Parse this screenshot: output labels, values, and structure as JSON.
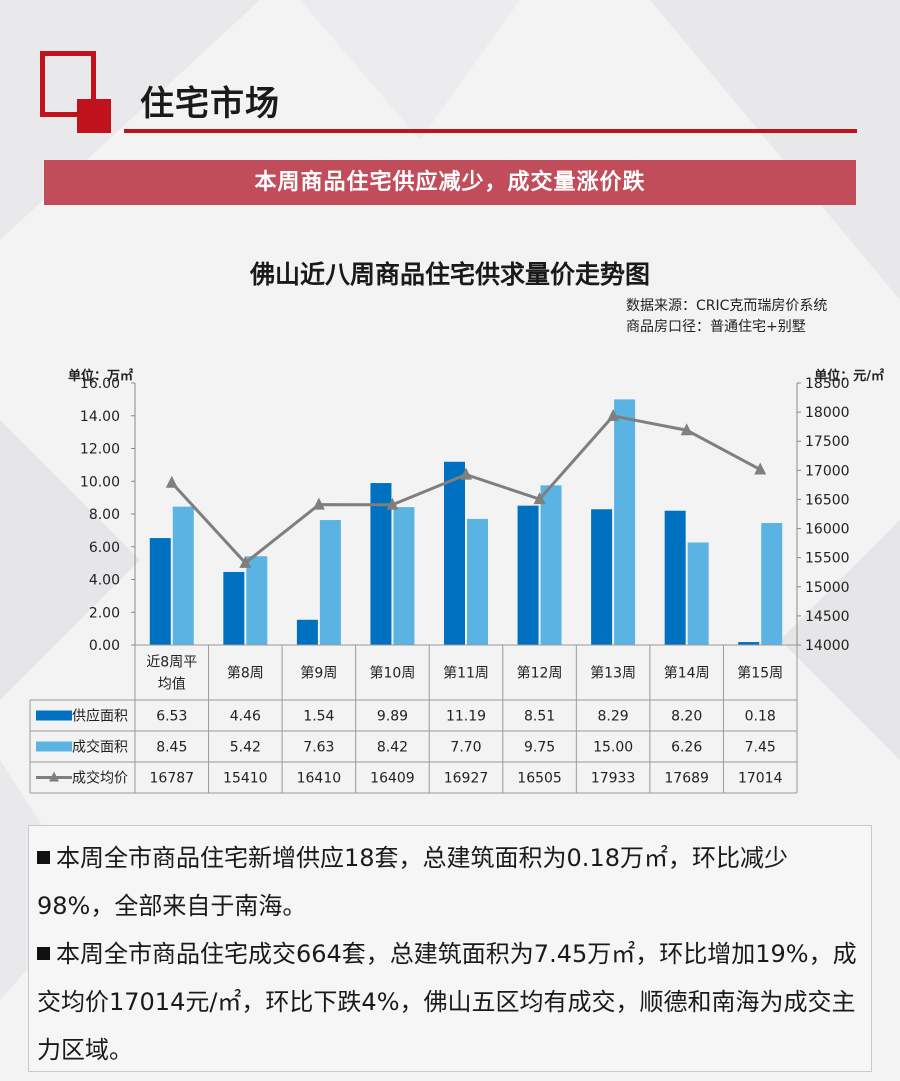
{
  "header": {
    "section_title": "住宅市场",
    "banner_text": "本周商品住宅供应减少，成交量涨价跌"
  },
  "chart_meta": {
    "source_line": "数据来源：CRIC克而瑞房价系统",
    "scope_line": "商品房口径：普通住宅+别墅"
  },
  "colors": {
    "accent_red": "#c0121c",
    "banner": "#c14d5b",
    "supply_bar": "#0070c0",
    "deal_bar": "#5bb3e4",
    "price_line": "#7f7f7f"
  },
  "chart_data": {
    "type": "bar",
    "title": "佛山近八周商品住宅供求量价走势图",
    "ylabel": "单位：万㎡",
    "y2label": "单位：元/㎡",
    "ylim": [
      0,
      16
    ],
    "y2lim": [
      14000,
      18500
    ],
    "yticks": [
      "0.00",
      "2.00",
      "4.00",
      "6.00",
      "8.00",
      "10.00",
      "12.00",
      "14.00",
      "16.00"
    ],
    "y2ticks": [
      "14000",
      "14500",
      "15000",
      "15500",
      "16000",
      "16500",
      "17000",
      "17500",
      "18000",
      "18500"
    ],
    "categories": [
      "近8周平均值",
      "第8周",
      "第9周",
      "第10周",
      "第11周",
      "第12周",
      "第13周",
      "第14周",
      "第15周"
    ],
    "category_lines": [
      [
        "近8周平",
        "均值"
      ],
      [
        "第8周"
      ],
      [
        "第9周"
      ],
      [
        "第10周"
      ],
      [
        "第11周"
      ],
      [
        "第12周"
      ],
      [
        "第13周"
      ],
      [
        "第14周"
      ],
      [
        "第15周"
      ]
    ],
    "series": [
      {
        "name": "供应面积",
        "type": "bar",
        "axis": "left",
        "values": [
          6.53,
          4.46,
          1.54,
          9.89,
          11.19,
          8.51,
          8.29,
          8.2,
          0.18
        ],
        "labels": [
          "6.53",
          "4.46",
          "1.54",
          "9.89",
          "11.19",
          "8.51",
          "8.29",
          "8.20",
          "0.18"
        ]
      },
      {
        "name": "成交面积",
        "type": "bar",
        "axis": "left",
        "values": [
          8.45,
          5.42,
          7.63,
          8.42,
          7.7,
          9.75,
          15.0,
          6.26,
          7.45
        ],
        "labels": [
          "8.45",
          "5.42",
          "7.63",
          "8.42",
          "7.70",
          "9.75",
          "15.00",
          "6.26",
          "7.45"
        ]
      },
      {
        "name": "成交均价",
        "type": "line",
        "axis": "right",
        "values": [
          16787,
          15410,
          16410,
          16409,
          16927,
          16505,
          17933,
          17689,
          17014
        ],
        "labels": [
          "16787",
          "15410",
          "16410",
          "16409",
          "16927",
          "16505",
          "17933",
          "17689",
          "17014"
        ]
      }
    ],
    "grid": false,
    "legend": "table-left"
  },
  "notes": {
    "p1": "本周全市商品住宅新增供应18套，总建筑面积为0.18万㎡，环比减少98%，全部来自于南海。",
    "p2": "本周全市商品住宅成交664套，总建筑面积为7.45万㎡，环比增加19%，成交均价17014元/㎡，环比下跌4%，佛山五区均有成交，顺德和南海为成交主力区域。"
  }
}
